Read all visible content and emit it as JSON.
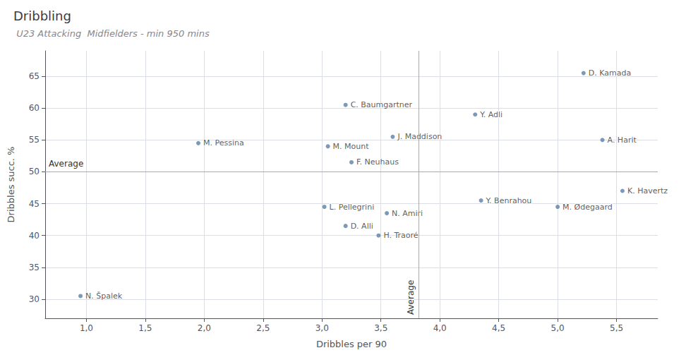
{
  "chart_data": {
    "type": "scatter",
    "title": "Dribbling",
    "subtitle": " U23 Attacking  Midfielders - min 950 mins",
    "xlabel": "Dribbles per 90",
    "ylabel": "Dribbles succ. %",
    "x": [
      5.22,
      4.3,
      3.2,
      3.6,
      3.05,
      3.25,
      1.95,
      5.38,
      5.55,
      4.35,
      5.0,
      3.02,
      3.55,
      3.2,
      3.48,
      0.95
    ],
    "values": [
      65.5,
      59.0,
      60.5,
      55.5,
      54.0,
      51.5,
      54.5,
      55.0,
      47.0,
      45.5,
      44.5,
      44.5,
      43.5,
      41.5,
      40.0,
      30.5
    ],
    "labels": [
      "D. Kamada",
      "Y. Adli",
      "C. Baumgartner",
      "J. Maddison",
      "M. Mount",
      "F. Neuhaus",
      "M. Pessina",
      "A. Harit",
      "K. Havertz",
      "Y. Benrahou",
      "M. Ødegaard",
      "L. Pellegrini",
      "N. Amiri",
      "D. Alli",
      "H. Traoré",
      "N. Špalek"
    ],
    "color": "#5b7fa6",
    "xlim": [
      0.65,
      5.85
    ],
    "ylim": [
      27,
      69
    ],
    "xticks": [
      {
        "value": 1.0,
        "label": "1,0"
      },
      {
        "value": 1.5,
        "label": "1,5"
      },
      {
        "value": 2.0,
        "label": "2,0"
      },
      {
        "value": 2.5,
        "label": "2,5"
      },
      {
        "value": 3.0,
        "label": "3,0"
      },
      {
        "value": 3.5,
        "label": "3,5"
      },
      {
        "value": 4.0,
        "label": "4,0"
      },
      {
        "value": 4.5,
        "label": "4,5"
      },
      {
        "value": 5.0,
        "label": "5,0"
      },
      {
        "value": 5.5,
        "label": "5,5"
      }
    ],
    "yticks": [
      30,
      35,
      40,
      45,
      50,
      55,
      60,
      65
    ],
    "grid": true,
    "reference_lines": [
      {
        "axis": "x",
        "value": 3.82,
        "label": "Average",
        "color": "#aaaaaa"
      },
      {
        "axis": "y",
        "value": 50.0,
        "label": "Average",
        "color": "#aaaaaa"
      }
    ]
  }
}
